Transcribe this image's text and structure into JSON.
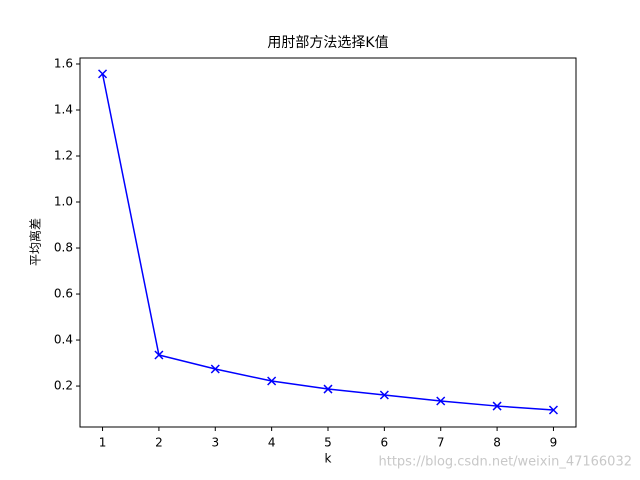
{
  "chart_data": {
    "type": "line",
    "title": "用肘部方法选择K值",
    "xlabel": "k",
    "ylabel": "平均离差",
    "x": [
      1,
      2,
      3,
      4,
      5,
      6,
      7,
      8,
      9
    ],
    "series": [
      {
        "values": [
          1.557,
          0.335,
          0.274,
          0.222,
          0.187,
          0.161,
          0.135,
          0.113,
          0.096
        ],
        "color": "#0000ff",
        "marker": "x"
      }
    ],
    "xlim": [
      0.6,
      9.4
    ],
    "xticks": [
      1,
      2,
      3,
      4,
      5,
      6,
      7,
      8,
      9
    ],
    "ylim": [
      0.022,
      1.626
    ],
    "yticks": [
      0.2,
      0.4,
      0.6,
      0.8,
      1.0,
      1.2,
      1.4,
      1.6
    ],
    "grid": false,
    "watermark": "https://blog.csdn.net/weixin_47166032"
  }
}
